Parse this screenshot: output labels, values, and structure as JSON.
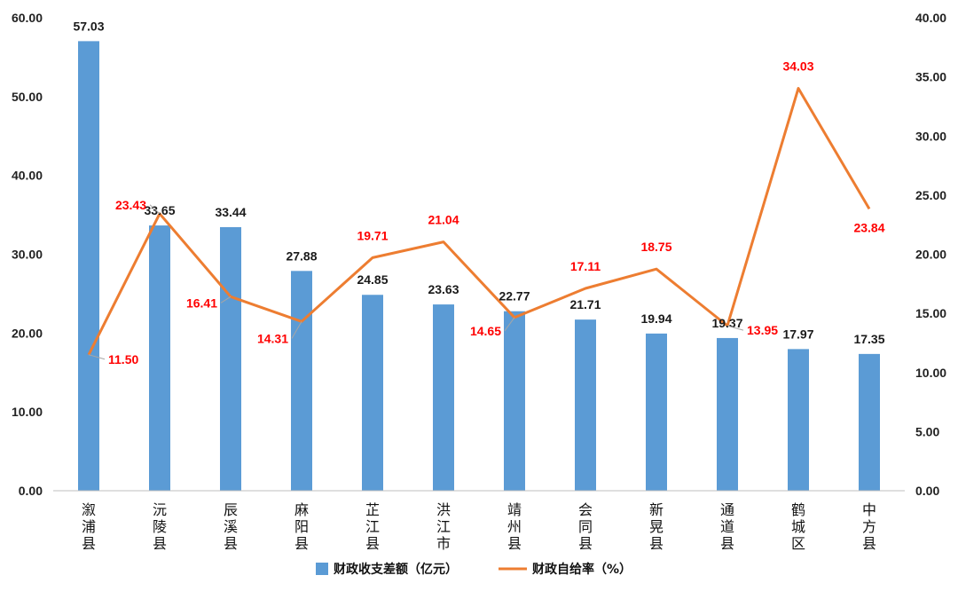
{
  "chart_data": {
    "type": "bar",
    "categories": [
      "溆浦县",
      "沅陵县",
      "辰溪县",
      "麻阳县",
      "芷江县",
      "洪江市",
      "靖州县",
      "会同县",
      "新晃县",
      "通道县",
      "鹤城区",
      "中方县"
    ],
    "series": [
      {
        "name": "财政收支差额（亿元）",
        "type": "bar",
        "axis": "left",
        "color": "#5B9BD5",
        "values": [
          57.03,
          33.65,
          33.44,
          27.88,
          24.85,
          23.63,
          22.77,
          21.71,
          19.94,
          19.37,
          17.97,
          17.35
        ],
        "labels": [
          "57.03",
          "33.65",
          "33.44",
          "27.88",
          "24.85",
          "23.63",
          "22.77",
          "21.71",
          "19.94",
          "19.37",
          "17.97",
          "17.35"
        ]
      },
      {
        "name": "财政自给率（%）",
        "type": "line",
        "axis": "right",
        "color": "#ED7D31",
        "label_color": "#FF0000",
        "values": [
          11.5,
          23.43,
          16.41,
          14.31,
          19.71,
          21.04,
          14.65,
          17.11,
          18.75,
          13.95,
          34.03,
          23.84
        ],
        "labels": [
          "11.50",
          "23.43",
          "16.41",
          "14.31",
          "19.71",
          "21.04",
          "14.65",
          "17.11",
          "18.75",
          "13.95",
          "34.03",
          "23.84"
        ]
      }
    ],
    "y_left": {
      "range": [
        0,
        60
      ],
      "ticks": [
        "0.00",
        "10.00",
        "20.00",
        "30.00",
        "40.00",
        "50.00",
        "60.00"
      ]
    },
    "y_right": {
      "range": [
        0,
        40
      ],
      "ticks": [
        "0.00",
        "5.00",
        "10.00",
        "15.00",
        "20.00",
        "25.00",
        "30.00",
        "35.00",
        "40.00"
      ]
    },
    "grid": false,
    "legend": "bottom",
    "title": "",
    "xlabel": "",
    "ylabel": ""
  }
}
